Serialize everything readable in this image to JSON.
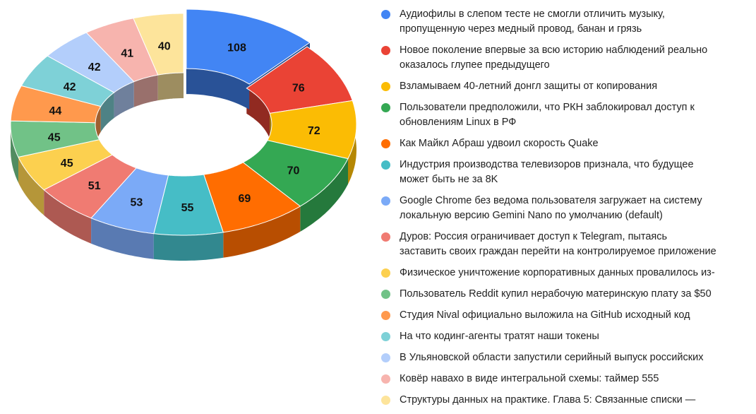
{
  "chart_data": {
    "type": "pie",
    "variant": "3d-donut",
    "exploded_first_slice": true,
    "legend_position": "right",
    "categories": [
      "Аудиофилы в слепом тесте не смогли отличить музыку,\nпропущенную через медный провод, банан и грязь",
      "Новое поколение впервые за всю историю наблюдений реально\nоказалось глупее предыдущего",
      "Взламываем 40-летний донгл защиты от копирования",
      "Пользователи предположили, что РКН заблокировал доступ к\nобновлениям Linux в РФ",
      "Как Майкл Абраш удвоил скорость Quake",
      "Индустрия производства телевизоров признала, что будущее\nможет быть не за 8K",
      "Google Chrome без ведома пользователя загружает на систему\nлокальную версию Gemini Nano по умолчанию (default)",
      "Дуров: Россия ограничивает доступ к Telegram, пытаясь\nзаставить своих граждан перейти на контролируемое приложение",
      "Физическое уничтожение корпоративных данных провалилось из-",
      "Пользователь Reddit купил нерабочую материнскую плату за $50",
      "Студия Nival официально выложила на GitHub исходный код",
      "На что кодинг-агенты тратят наши токены",
      "В Ульяновской области запустили серийный выпуск российских",
      "Ковёр навахо в виде интегральной схемы: таймер 555",
      "Структуры данных на практике. Глава 5: Связанные списки —"
    ],
    "values": [
      108,
      76,
      72,
      70,
      69,
      55,
      53,
      51,
      45,
      45,
      44,
      42,
      42,
      41,
      40
    ],
    "colors": [
      "#4285f4",
      "#ea4335",
      "#fbbc04",
      "#34a853",
      "#ff6d01",
      "#46bdc6",
      "#7baaf7",
      "#f07b72",
      "#fcd04f",
      "#71c287",
      "#ff994d",
      "#7ed1d7",
      "#b3cefb",
      "#f7b4ae",
      "#fde49b"
    ]
  }
}
